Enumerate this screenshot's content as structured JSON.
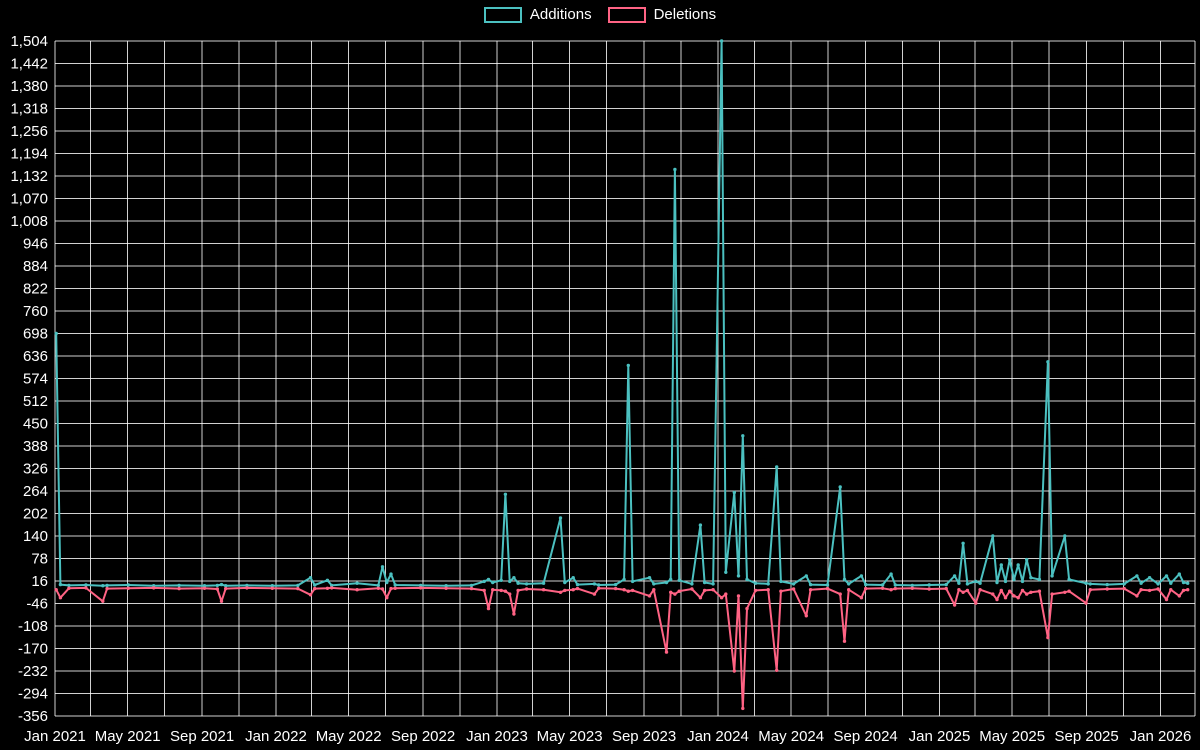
{
  "chart_data": {
    "type": "line",
    "title": "",
    "legend_position": "top",
    "background": "#000000",
    "grid": true,
    "series": [
      {
        "name": "Additions",
        "color": "#4bc0c0"
      },
      {
        "name": "Deletions",
        "color": "#ff6384"
      }
    ],
    "y_axis": {
      "min": -356,
      "max": 1504,
      "step": 62,
      "labels": [
        "1,504",
        "1,442",
        "1,380",
        "1,318",
        "1,256",
        "1,194",
        "1,132",
        "1,070",
        "1,008",
        "946",
        "884",
        "822",
        "760",
        "698",
        "636",
        "574",
        "512",
        "450",
        "388",
        "326",
        "264",
        "202",
        "140",
        "78",
        "16",
        "-46",
        "-108",
        "-170",
        "-232",
        "-294",
        "-356"
      ]
    },
    "x_axis": {
      "start": "2021-01-01",
      "end": "2026-02-27",
      "ticks": [
        {
          "label": "Jan 2021",
          "date": "2021-01-01"
        },
        {
          "label": "May 2021",
          "date": "2021-05-01"
        },
        {
          "label": "Sep 2021",
          "date": "2021-09-01"
        },
        {
          "label": "Jan 2022",
          "date": "2022-01-01"
        },
        {
          "label": "May 2022",
          "date": "2022-05-01"
        },
        {
          "label": "Sep 2022",
          "date": "2022-09-01"
        },
        {
          "label": "Jan 2023",
          "date": "2023-01-01"
        },
        {
          "label": "May 2023",
          "date": "2023-05-01"
        },
        {
          "label": "Sep 2023",
          "date": "2023-09-01"
        },
        {
          "label": "Jan 2024",
          "date": "2024-01-01"
        },
        {
          "label": "May 2024",
          "date": "2024-05-01"
        },
        {
          "label": "Sep 2024",
          "date": "2024-09-01"
        },
        {
          "label": "Jan 2025",
          "date": "2025-01-01"
        },
        {
          "label": "May 2025",
          "date": "2025-05-01"
        },
        {
          "label": "Sep 2025",
          "date": "2025-09-01"
        },
        {
          "label": "Jan 2026",
          "date": "2026-01-01"
        }
      ]
    },
    "points": [
      [
        "2021-01-03",
        698,
        -8
      ],
      [
        "2021-01-10",
        6,
        -30
      ],
      [
        "2021-01-24",
        4,
        -4
      ],
      [
        "2021-02-21",
        5,
        -3
      ],
      [
        "2021-03-21",
        3,
        -40
      ],
      [
        "2021-03-28",
        4,
        -5
      ],
      [
        "2021-05-02",
        5,
        -4
      ],
      [
        "2021-06-13",
        3,
        -3
      ],
      [
        "2021-07-25",
        4,
        -5
      ],
      [
        "2021-09-05",
        3,
        -4
      ],
      [
        "2021-09-26",
        4,
        -6
      ],
      [
        "2021-10-03",
        6,
        -40
      ],
      [
        "2021-10-10",
        3,
        -5
      ],
      [
        "2021-11-14",
        4,
        -3
      ],
      [
        "2021-12-26",
        3,
        -4
      ],
      [
        "2022-02-06",
        4,
        -5
      ],
      [
        "2022-02-27",
        25,
        -22
      ],
      [
        "2022-03-06",
        5,
        -5
      ],
      [
        "2022-03-27",
        18,
        -4
      ],
      [
        "2022-04-03",
        4,
        -3
      ],
      [
        "2022-05-15",
        10,
        -8
      ],
      [
        "2022-06-19",
        4,
        -4
      ],
      [
        "2022-06-26",
        55,
        -6
      ],
      [
        "2022-07-03",
        12,
        -30
      ],
      [
        "2022-07-10",
        35,
        -5
      ],
      [
        "2022-07-17",
        5,
        -4
      ],
      [
        "2022-08-28",
        4,
        -3
      ],
      [
        "2022-10-09",
        3,
        -4
      ],
      [
        "2022-11-20",
        4,
        -5
      ],
      [
        "2022-12-11",
        15,
        -10
      ],
      [
        "2022-12-18",
        20,
        -60
      ],
      [
        "2022-12-25",
        12,
        -8
      ],
      [
        "2023-01-08",
        18,
        -10
      ],
      [
        "2023-01-15",
        255,
        -12
      ],
      [
        "2023-01-22",
        15,
        -20
      ],
      [
        "2023-01-29",
        25,
        -75
      ],
      [
        "2023-02-05",
        10,
        -10
      ],
      [
        "2023-02-19",
        8,
        -6
      ],
      [
        "2023-03-19",
        10,
        -8
      ],
      [
        "2023-04-16",
        190,
        -15
      ],
      [
        "2023-04-23",
        12,
        -10
      ],
      [
        "2023-05-07",
        25,
        -8
      ],
      [
        "2023-05-14",
        6,
        -5
      ],
      [
        "2023-06-11",
        8,
        -20
      ],
      [
        "2023-06-18",
        5,
        -4
      ],
      [
        "2023-07-16",
        6,
        -5
      ],
      [
        "2023-07-30",
        20,
        -8
      ],
      [
        "2023-08-06",
        610,
        -12
      ],
      [
        "2023-08-13",
        15,
        -10
      ],
      [
        "2023-09-10",
        25,
        -25
      ],
      [
        "2023-09-17",
        8,
        -8
      ],
      [
        "2023-10-08",
        12,
        -180
      ],
      [
        "2023-10-15",
        20,
        -15
      ],
      [
        "2023-10-22",
        1150,
        -20
      ],
      [
        "2023-10-29",
        18,
        -12
      ],
      [
        "2023-11-19",
        8,
        -6
      ],
      [
        "2023-12-03",
        170,
        -30
      ],
      [
        "2023-12-10",
        12,
        -10
      ],
      [
        "2023-12-24",
        8,
        -8
      ],
      [
        "2024-01-07",
        1504,
        -30
      ],
      [
        "2024-01-14",
        40,
        -20
      ],
      [
        "2024-01-28",
        260,
        -232
      ],
      [
        "2024-02-04",
        30,
        -25
      ],
      [
        "2024-02-11",
        416,
        -335
      ],
      [
        "2024-02-18",
        20,
        -60
      ],
      [
        "2024-03-03",
        10,
        -10
      ],
      [
        "2024-03-24",
        8,
        -8
      ],
      [
        "2024-04-07",
        330,
        -230
      ],
      [
        "2024-04-14",
        15,
        -12
      ],
      [
        "2024-05-05",
        8,
        -6
      ],
      [
        "2024-05-26",
        30,
        -80
      ],
      [
        "2024-06-02",
        6,
        -8
      ],
      [
        "2024-06-30",
        5,
        -5
      ],
      [
        "2024-07-21",
        275,
        -20
      ],
      [
        "2024-07-28",
        20,
        -150
      ],
      [
        "2024-08-04",
        8,
        -8
      ],
      [
        "2024-08-25",
        30,
        -30
      ],
      [
        "2024-09-01",
        6,
        -5
      ],
      [
        "2024-09-29",
        5,
        -4
      ],
      [
        "2024-10-13",
        35,
        -8
      ],
      [
        "2024-10-20",
        5,
        -5
      ],
      [
        "2024-11-17",
        4,
        -4
      ],
      [
        "2024-12-15",
        5,
        -6
      ],
      [
        "2025-01-12",
        6,
        -5
      ],
      [
        "2025-01-26",
        30,
        -50
      ],
      [
        "2025-02-02",
        10,
        -8
      ],
      [
        "2025-02-09",
        120,
        -15
      ],
      [
        "2025-02-16",
        8,
        -10
      ],
      [
        "2025-03-02",
        15,
        -45
      ],
      [
        "2025-03-09",
        10,
        -8
      ],
      [
        "2025-03-30",
        140,
        -20
      ],
      [
        "2025-04-06",
        12,
        -35
      ],
      [
        "2025-04-13",
        60,
        -10
      ],
      [
        "2025-04-20",
        15,
        -30
      ],
      [
        "2025-04-27",
        75,
        -12
      ],
      [
        "2025-05-04",
        20,
        -25
      ],
      [
        "2025-05-11",
        60,
        -30
      ],
      [
        "2025-05-18",
        15,
        -10
      ],
      [
        "2025-05-25",
        75,
        -20
      ],
      [
        "2025-06-01",
        25,
        -15
      ],
      [
        "2025-06-15",
        20,
        -12
      ],
      [
        "2025-06-29",
        620,
        -140
      ],
      [
        "2025-07-06",
        30,
        -20
      ],
      [
        "2025-07-27",
        140,
        -15
      ],
      [
        "2025-08-03",
        20,
        -12
      ],
      [
        "2025-08-31",
        10,
        -45
      ],
      [
        "2025-09-07",
        8,
        -8
      ],
      [
        "2025-10-05",
        6,
        -6
      ],
      [
        "2025-11-02",
        8,
        -5
      ],
      [
        "2025-11-23",
        30,
        -25
      ],
      [
        "2025-11-30",
        10,
        -8
      ],
      [
        "2025-12-14",
        25,
        -10
      ],
      [
        "2025-12-28",
        8,
        -6
      ],
      [
        "2026-01-11",
        30,
        -35
      ],
      [
        "2026-01-18",
        10,
        -8
      ],
      [
        "2026-02-01",
        35,
        -25
      ],
      [
        "2026-02-08",
        12,
        -10
      ],
      [
        "2026-02-15",
        10,
        -8
      ]
    ]
  }
}
